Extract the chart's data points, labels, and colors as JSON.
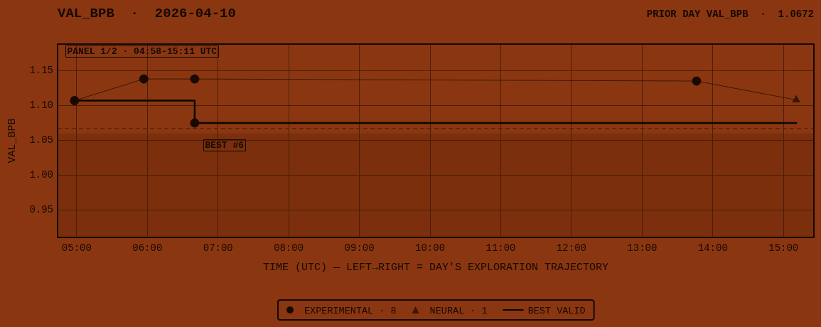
{
  "chart_data": {
    "type": "scatter",
    "title": "VAL_BPB  ·  2026-04-10",
    "subtitle": "PRIOR DAY VAL_BPB  ·  1.0672",
    "xlabel": "TIME (UTC) — LEFT→RIGHT = DAY'S EXPLORATION TRAJECTORY",
    "ylabel": "VAL_BPB",
    "xlim": [
      4.73,
      15.43
    ],
    "xticks": [
      {
        "value": 5,
        "label": "05:00"
      },
      {
        "value": 6,
        "label": "06:00"
      },
      {
        "value": 7,
        "label": "07:00"
      },
      {
        "value": 8,
        "label": "08:00"
      },
      {
        "value": 9,
        "label": "09:00"
      },
      {
        "value": 10,
        "label": "10:00"
      },
      {
        "value": 11,
        "label": "11:00"
      },
      {
        "value": 12,
        "label": "12:00"
      },
      {
        "value": 13,
        "label": "13:00"
      },
      {
        "value": 14,
        "label": "14:00"
      },
      {
        "value": 15,
        "label": "15:00"
      }
    ],
    "ylim": [
      0.911,
      1.188
    ],
    "yticks": [
      0.95,
      {
        "value": 1,
        "label": "1.00"
      },
      1.05,
      {
        "value": 1.1,
        "label": "1.10"
      },
      1.15
    ],
    "grid": true,
    "legend": "bottom",
    "series": [
      {
        "type": "line",
        "color": "#3b1806",
        "marker": "none",
        "x": [
          4.97,
          5.95,
          6.67,
          13.77,
          15.18
        ],
        "values": [
          1.107,
          1.138,
          1.138,
          1.135,
          1.108
        ]
      },
      {
        "name": "EXPERIMENTAL · 8",
        "type": "scatter",
        "color": "#1a0903",
        "marker": "circle",
        "x": [
          4.97,
          5.95,
          6.67,
          6.67,
          13.77
        ],
        "values": [
          1.107,
          1.138,
          1.138,
          1.075,
          1.135
        ]
      },
      {
        "name": "NEURAL · 1",
        "type": "scatter",
        "color": "#3a1606",
        "marker": "triangle",
        "x": [
          15.18
        ],
        "values": [
          1.108
        ]
      },
      {
        "name": "BEST VALID",
        "type": "step",
        "color": "#0d0502",
        "marker": "none",
        "x": [
          4.97,
          6.67,
          15.18
        ],
        "values": [
          1.107,
          1.075,
          1.075
        ]
      }
    ],
    "ref_lines": [
      {
        "axis": "y",
        "value": 1.0672,
        "line_style": "dashed",
        "color": "#5a2309"
      }
    ],
    "bands": [
      {
        "axis": "y",
        "from": 0.911,
        "to": 1.06,
        "color": "#7b2f0d"
      }
    ],
    "annotations": [
      "PANEL 1/2 · 04:58-15:11 UTC",
      {
        "text": "BEST #6",
        "x": 6.67,
        "y": 1.075
      }
    ]
  }
}
